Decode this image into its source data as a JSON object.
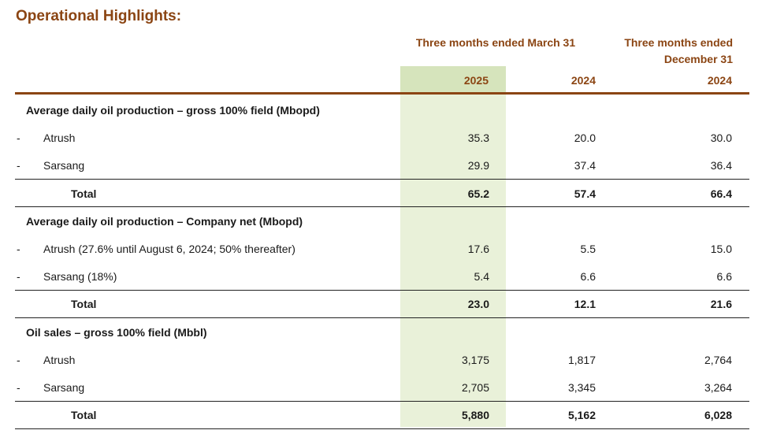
{
  "title": "Operational Highlights:",
  "header": {
    "group_label": "Three months ended March 31",
    "dec_label_line1": "Three months ended",
    "dec_label_line2": "December 31",
    "year_1": "2025",
    "year_2": "2024",
    "year_3": "2024"
  },
  "colors": {
    "accent": "#8b4513",
    "highlight_column": "#e9f1d9",
    "highlight_header": "#d6e4bc"
  },
  "rows": [
    {
      "type": "section",
      "label": "Average daily oil production – gross 100% field (Mbopd)"
    },
    {
      "type": "item",
      "dash": "-",
      "label": "Atrush",
      "v1": "35.3",
      "v2": "20.0",
      "v3": "30.0"
    },
    {
      "type": "item",
      "dash": "-",
      "label": "Sarsang",
      "v1": "29.9",
      "v2": "37.4",
      "v3": "36.4"
    },
    {
      "type": "total",
      "label": "Total",
      "v1": "65.2",
      "v2": "57.4",
      "v3": "66.4"
    },
    {
      "type": "section",
      "label": "Average daily oil production – Company net (Mbopd)"
    },
    {
      "type": "item",
      "dash": "-",
      "label": "Atrush (27.6% until August 6, 2024; 50% thereafter)",
      "v1": "17.6",
      "v2": "5.5",
      "v3": "15.0"
    },
    {
      "type": "item",
      "dash": "-",
      "label": "Sarsang (18%)",
      "v1": "5.4",
      "v2": "6.6",
      "v3": "6.6"
    },
    {
      "type": "total",
      "label": "Total",
      "v1": "23.0",
      "v2": "12.1",
      "v3": "21.6"
    },
    {
      "type": "section",
      "label": "Oil sales – gross 100% field (Mbbl)"
    },
    {
      "type": "item",
      "dash": "-",
      "label": "Atrush",
      "v1": "3,175",
      "v2": "1,817",
      "v3": "2,764"
    },
    {
      "type": "item",
      "dash": "-",
      "label": "Sarsang",
      "v1": "2,705",
      "v2": "3,345",
      "v3": "3,264"
    },
    {
      "type": "total",
      "label": "Total",
      "v1": "5,880",
      "v2": "5,162",
      "v3": "6,028"
    }
  ]
}
